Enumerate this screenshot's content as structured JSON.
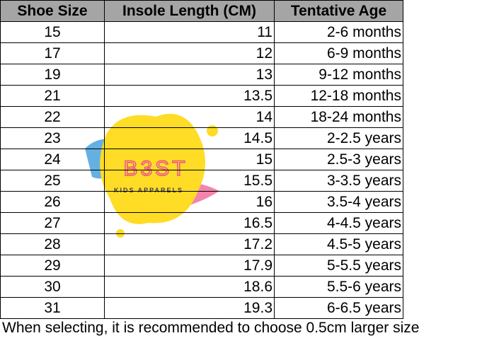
{
  "header": [
    "Shoe Size",
    "Insole Length (CM)",
    "Tentative Age"
  ],
  "table": {
    "rows": [
      [
        15,
        11,
        "2-6 months"
      ],
      [
        17,
        12,
        "6-9 months"
      ],
      [
        19,
        13,
        "9-12 months"
      ],
      [
        21,
        13.5,
        "12-18 months"
      ],
      [
        22,
        14,
        "18-24 months"
      ],
      [
        23,
        14.5,
        "2-2.5 years"
      ],
      [
        24,
        15,
        "2.5-3 years"
      ],
      [
        25,
        15.5,
        "3-3.5 years"
      ],
      [
        26,
        16,
        "3.5-4 years"
      ],
      [
        27,
        16.5,
        "4-4.5 years"
      ],
      [
        28,
        17.2,
        "4.5-5 years"
      ],
      [
        29,
        17.9,
        "5-5.5 years"
      ],
      [
        30,
        18.6,
        "5.5-6 years"
      ],
      [
        31,
        19.3,
        "6-6.5 years"
      ]
    ]
  },
  "watermark": {
    "title": "B3ST",
    "subtitle": "KIDS APPARELS"
  },
  "footer": "When selecting, it is recommended to choose 0.5cm larger size"
}
